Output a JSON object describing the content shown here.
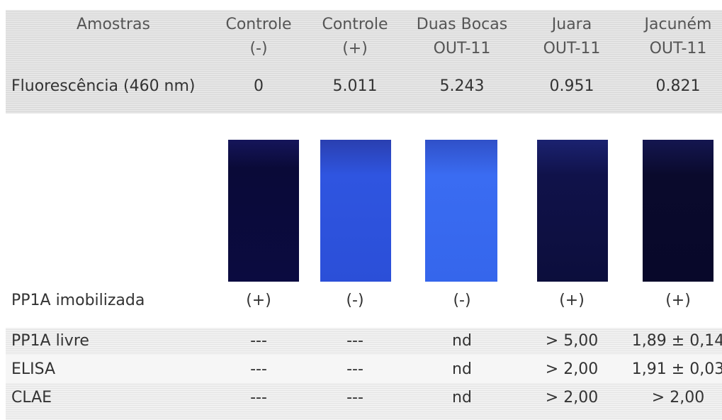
{
  "table": {
    "header": [
      [
        "Amostras"
      ],
      [
        "Controle",
        "(-)"
      ],
      [
        "Controle",
        "(+)"
      ],
      [
        "Duas Bocas",
        "OUT-11"
      ],
      [
        "Juara",
        "OUT-11"
      ],
      [
        "Jacuném",
        "OUT-11"
      ]
    ],
    "rows": [
      [
        "Fluorescência (460 nm)",
        "0",
        "5.011",
        "5.243",
        "0.951",
        "0.821"
      ],
      [
        "PP1A imobilizada",
        "(+)",
        "(-)",
        "(-)",
        "(+)",
        "(+)"
      ],
      [
        "PP1A livre",
        "---",
        "---",
        "nd",
        "> 5,00",
        "1,89 ± 0,14"
      ],
      [
        "ELISA",
        "---",
        "---",
        "nd",
        "> 2,00",
        "1,91 ± 0,03"
      ],
      [
        "CLAE",
        "---",
        "---",
        "nd",
        "> 2,00",
        "> 2,00"
      ]
    ]
  }
}
